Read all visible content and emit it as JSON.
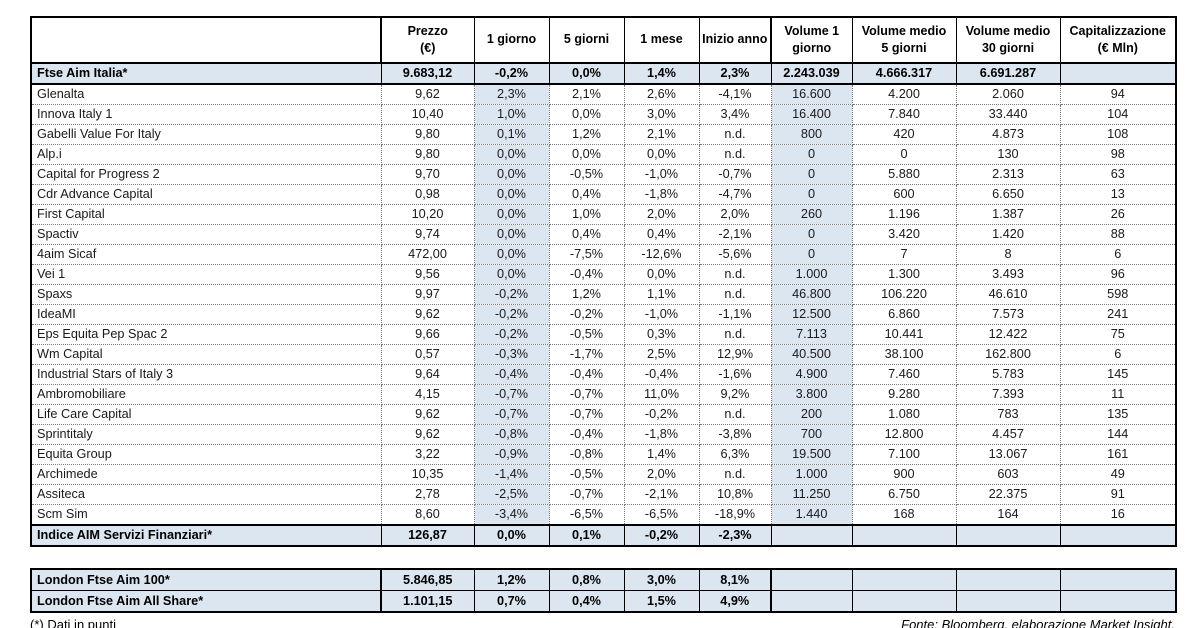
{
  "colors": {
    "highlight": "#dce6f1",
    "grid_dotted": "#7c7c7c",
    "border": "#000000"
  },
  "main_table": {
    "header": {
      "name_header": "",
      "columns": [
        "Prezzo\n(€)",
        "1 giorno",
        "5 giorni",
        "1 mese",
        "Inizio anno",
        "Volume 1\ngiorno",
        "Volume medio\n5 giorni",
        "Volume medio\n30 giorni",
        "Capitalizzazione\n(€ Mln)"
      ]
    },
    "index_row": {
      "name": "Ftse Aim Italia*",
      "values": [
        "9.683,12",
        "-0,2%",
        "0,0%",
        "1,4%",
        "2,3%",
        "2.243.039",
        "4.666.317",
        "6.691.287",
        ""
      ]
    },
    "rows": [
      {
        "name": "Glenalta",
        "values": [
          "9,62",
          "2,3%",
          "2,1%",
          "2,6%",
          "-4,1%",
          "16.600",
          "4.200",
          "2.060",
          "94"
        ]
      },
      {
        "name": "Innova Italy 1",
        "values": [
          "10,40",
          "1,0%",
          "0,0%",
          "3,0%",
          "3,4%",
          "16.400",
          "7.840",
          "33.440",
          "104"
        ]
      },
      {
        "name": "Gabelli Value For Italy",
        "values": [
          "9,80",
          "0,1%",
          "1,2%",
          "2,1%",
          "n.d.",
          "800",
          "420",
          "4.873",
          "108"
        ]
      },
      {
        "name": "Alp.i",
        "values": [
          "9,80",
          "0,0%",
          "0,0%",
          "0,0%",
          "n.d.",
          "0",
          "0",
          "130",
          "98"
        ]
      },
      {
        "name": "Capital for Progress 2",
        "values": [
          "9,70",
          "0,0%",
          "-0,5%",
          "-1,0%",
          "-0,7%",
          "0",
          "5.880",
          "2.313",
          "63"
        ]
      },
      {
        "name": "Cdr Advance Capital",
        "values": [
          "0,98",
          "0,0%",
          "0,4%",
          "-1,8%",
          "-4,7%",
          "0",
          "600",
          "6.650",
          "13"
        ]
      },
      {
        "name": "First Capital",
        "values": [
          "10,20",
          "0,0%",
          "1,0%",
          "2,0%",
          "2,0%",
          "260",
          "1.196",
          "1.387",
          "26"
        ]
      },
      {
        "name": "Spactiv",
        "values": [
          "9,74",
          "0,0%",
          "0,4%",
          "0,4%",
          "-2,1%",
          "0",
          "3.420",
          "1.420",
          "88"
        ]
      },
      {
        "name": "4aim Sicaf",
        "values": [
          "472,00",
          "0,0%",
          "-7,5%",
          "-12,6%",
          "-5,6%",
          "0",
          "7",
          "8",
          "6"
        ]
      },
      {
        "name": "Vei 1",
        "values": [
          "9,56",
          "0,0%",
          "-0,4%",
          "0,0%",
          "n.d.",
          "1.000",
          "1.300",
          "3.493",
          "96"
        ]
      },
      {
        "name": "Spaxs",
        "values": [
          "9,97",
          "-0,2%",
          "1,2%",
          "1,1%",
          "n.d.",
          "46.800",
          "106.220",
          "46.610",
          "598"
        ]
      },
      {
        "name": "IdeaMI",
        "values": [
          "9,62",
          "-0,2%",
          "-0,2%",
          "-1,0%",
          "-1,1%",
          "12.500",
          "6.860",
          "7.573",
          "241"
        ]
      },
      {
        "name": "Eps Equita Pep Spac 2",
        "values": [
          "9,66",
          "-0,2%",
          "-0,5%",
          "0,3%",
          "n.d.",
          "7.113",
          "10.441",
          "12.422",
          "75"
        ]
      },
      {
        "name": "Wm Capital",
        "values": [
          "0,57",
          "-0,3%",
          "-1,7%",
          "2,5%",
          "12,9%",
          "40.500",
          "38.100",
          "162.800",
          "6"
        ]
      },
      {
        "name": "Industrial Stars of Italy 3",
        "values": [
          "9,64",
          "-0,4%",
          "-0,4%",
          "-0,4%",
          "-1,6%",
          "4.900",
          "7.460",
          "5.783",
          "145"
        ]
      },
      {
        "name": "Ambromobiliare",
        "values": [
          "4,15",
          "-0,7%",
          "-0,7%",
          "11,0%",
          "9,2%",
          "3.800",
          "9.280",
          "7.393",
          "11"
        ]
      },
      {
        "name": "Life Care Capital",
        "values": [
          "9,62",
          "-0,7%",
          "-0,7%",
          "-0,2%",
          "n.d.",
          "200",
          "1.080",
          "783",
          "135"
        ]
      },
      {
        "name": "Sprintitaly",
        "values": [
          "9,62",
          "-0,8%",
          "-0,4%",
          "-1,8%",
          "-3,8%",
          "700",
          "12.800",
          "4.457",
          "144"
        ]
      },
      {
        "name": "Equita Group",
        "values": [
          "3,22",
          "-0,9%",
          "-0,8%",
          "1,4%",
          "6,3%",
          "19.500",
          "7.100",
          "13.067",
          "161"
        ]
      },
      {
        "name": "Archimede",
        "values": [
          "10,35",
          "-1,4%",
          "-0,5%",
          "2,0%",
          "n.d.",
          "1.000",
          "900",
          "603",
          "49"
        ]
      },
      {
        "name": "Assiteca",
        "values": [
          "2,78",
          "-2,5%",
          "-0,7%",
          "-2,1%",
          "10,8%",
          "11.250",
          "6.750",
          "22.375",
          "91"
        ]
      },
      {
        "name": "Scm Sim",
        "values": [
          "8,60",
          "-3,4%",
          "-6,5%",
          "-6,5%",
          "-18,9%",
          "1.440",
          "168",
          "164",
          "16"
        ]
      }
    ],
    "summary_row": {
      "name": "Indice AIM Servizi Finanziari*",
      "values": [
        "126,87",
        "0,0%",
        "0,1%",
        "-0,2%",
        "-2,3%",
        "",
        "",
        "",
        ""
      ]
    }
  },
  "london_table": {
    "rows": [
      {
        "name": "London Ftse Aim 100*",
        "values": [
          "5.846,85",
          "1,2%",
          "0,8%",
          "3,0%",
          "8,1%",
          "",
          "",
          "",
          ""
        ]
      },
      {
        "name": "London Ftse Aim All Share*",
        "values": [
          "1.101,15",
          "0,7%",
          "0,4%",
          "1,5%",
          "4,9%",
          "",
          "",
          "",
          ""
        ]
      }
    ]
  },
  "footnotes": {
    "left": "(*) Dati in punti",
    "right": "Fonte: Bloomberg, elaborazione Market Insight."
  }
}
